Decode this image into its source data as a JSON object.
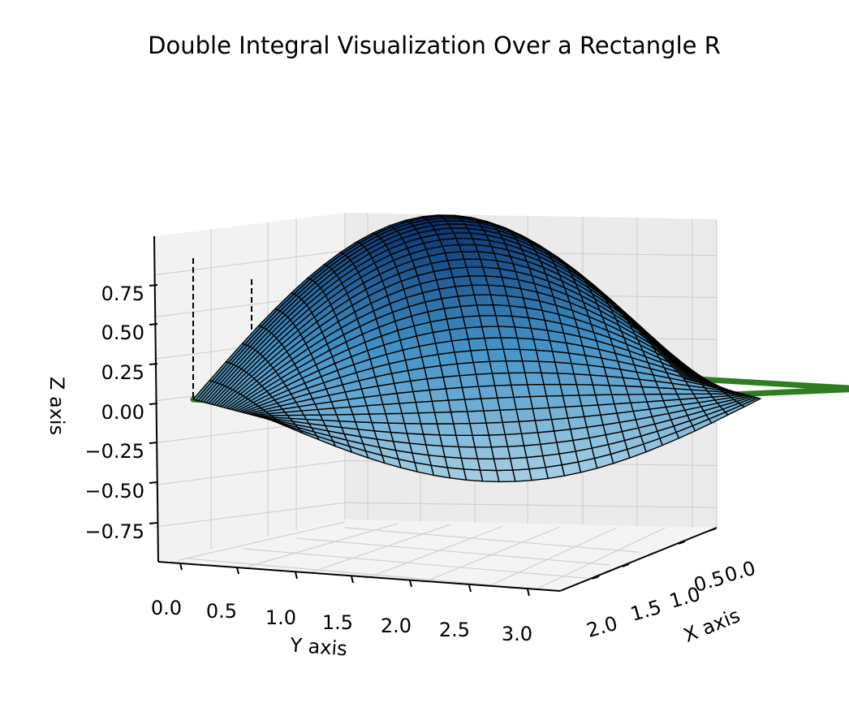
{
  "chart_data": {
    "type": "surface",
    "title": "Double Integral Visualization Over a Rectangle R",
    "xlabel": "X axis",
    "ylabel": "Y axis",
    "zlabel": "Z axis",
    "xlim": [
      0,
      2
    ],
    "ylim": [
      0,
      3.14159
    ],
    "zlim": [
      -0.9,
      0.95
    ],
    "x_ticks": [
      "0.0",
      "0.5",
      "1.0",
      "1.5",
      "2.0"
    ],
    "y_ticks": [
      "0.0",
      "0.5",
      "1.0",
      "1.5",
      "2.0",
      "2.5",
      "3.0"
    ],
    "z_ticks": [
      "−0.75",
      "−0.50",
      "−0.25",
      "0.00",
      "0.25",
      "0.50",
      "0.75"
    ],
    "surface": {
      "function": "z = sin(y) * cos(x)",
      "x_range": [
        0,
        2
      ],
      "y_range": [
        0,
        3.14159
      ],
      "grid_rows": 30,
      "grid_cols": 30,
      "colormap": "Blues",
      "edgecolor": "#000000"
    },
    "region_R": {
      "corners": [
        [
          0,
          0,
          0
        ],
        [
          2,
          0,
          0
        ],
        [
          2,
          3.14159,
          0
        ],
        [
          0,
          3.14159,
          0
        ]
      ],
      "color": "#2e7d1e"
    },
    "drop_lines": [
      {
        "x": 0,
        "y": 0.7854,
        "z": 0.7071
      },
      {
        "x": 0,
        "y": 1.5708,
        "z": 1.0
      },
      {
        "x": 0,
        "y": 2.3562,
        "z": 0.7071
      }
    ],
    "grid": true
  }
}
